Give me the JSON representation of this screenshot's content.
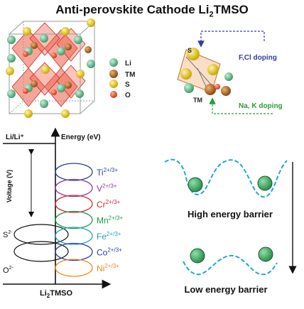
{
  "title": {
    "main": "Anti-perovskite Cathode Li",
    "sub2": "2",
    "suffix": "TMSO"
  },
  "legend": {
    "items": [
      {
        "label": "Li",
        "color": "#5fc08e"
      },
      {
        "label": "TM",
        "color": "#b5651d"
      },
      {
        "label": "S",
        "color": "#ecd12a"
      },
      {
        "label": "O",
        "color": "#e84b2a"
      }
    ]
  },
  "doping": {
    "s_label": "S",
    "tm_label": "TM",
    "anion": "F,Cl doping",
    "cation": "Na, K doping",
    "anion_color": "#2e3f9e",
    "cation_color": "#2e9a3a"
  },
  "energy_diagram": {
    "ref_label": "Li/Li⁺",
    "energy_axis": "Energy (eV)",
    "voltage_axis": "Voltage (V)",
    "x_label_main": "Li",
    "x_label_sub": "2",
    "x_label_suffix": "TMSO",
    "anions": [
      {
        "base": "S",
        "sup": "2-"
      },
      {
        "base": "O",
        "sup": "2-"
      }
    ],
    "cations": [
      {
        "base": "Ti",
        "sup": "2+/3+",
        "color": "#2a3fa0"
      },
      {
        "base": "V",
        "sup": "2+/3+",
        "color": "#8e3a96"
      },
      {
        "base": "Cr",
        "sup": "2+/3+",
        "color": "#d42a2a"
      },
      {
        "base": "Mn",
        "sup": "2+/3+",
        "color": "#1a9a46"
      },
      {
        "base": "Fe",
        "sup": "2+/3+",
        "color": "#1f9fd0"
      },
      {
        "base": "Co",
        "sup": "2+/3+",
        "color": "#2a3fa0"
      },
      {
        "base": "Ni",
        "sup": "2+/3+",
        "color": "#f08c1a"
      }
    ]
  },
  "barriers": {
    "high": "High energy barrier",
    "low": "Low energy barrier",
    "curve_color": "#1fa7d8",
    "ion_color": "#3cb46a"
  }
}
